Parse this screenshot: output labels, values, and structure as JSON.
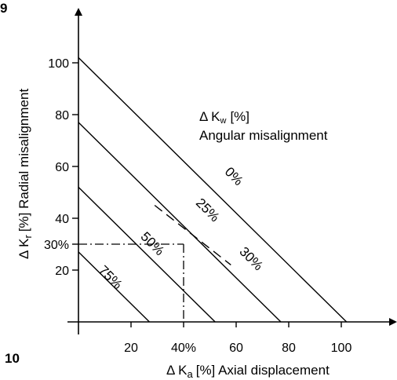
{
  "page_numbers": {
    "top": "9",
    "bottom": "10"
  },
  "annotation": {
    "title": "Δ K",
    "title_sub": "w",
    "title_unit": "[%]",
    "subtitle": "Angular misalignment"
  },
  "chart_data": {
    "type": "line",
    "xlabel": {
      "prefix": "Δ K",
      "sub": "a",
      "suffix": "[%]  Axial displacement"
    },
    "ylabel": {
      "prefix": "Δ K",
      "sub": "r",
      "suffix": "[%]  Radial misalignment"
    },
    "xlim": [
      0,
      115
    ],
    "ylim": [
      0,
      112
    ],
    "x_ticks": [
      {
        "value": 20,
        "label": "20"
      },
      {
        "value": 40,
        "label": "40%"
      },
      {
        "value": 60,
        "label": "60"
      },
      {
        "value": 80,
        "label": "80"
      },
      {
        "value": 100,
        "label": "100"
      }
    ],
    "y_ticks": [
      {
        "value": 20,
        "label": "20"
      },
      {
        "value": 30,
        "label": "30%"
      },
      {
        "value": 40,
        "label": "40"
      },
      {
        "value": 60,
        "label": "60"
      },
      {
        "value": 80,
        "label": "80"
      },
      {
        "value": 100,
        "label": "100"
      }
    ],
    "series": [
      {
        "name": "0%",
        "x": [
          0,
          102
        ],
        "y": [
          102,
          0
        ]
      },
      {
        "name": "25%",
        "x": [
          0,
          77
        ],
        "y": [
          77,
          0
        ]
      },
      {
        "name": "50%",
        "x": [
          0,
          52
        ],
        "y": [
          52,
          0
        ]
      },
      {
        "name": "75%",
        "x": [
          0,
          27
        ],
        "y": [
          27,
          0
        ]
      }
    ],
    "example": {
      "x": 40,
      "y": 30,
      "result_label": "30%",
      "dashed_line": {
        "x": [
          29,
          58
        ],
        "y": [
          45,
          22
        ]
      }
    }
  }
}
